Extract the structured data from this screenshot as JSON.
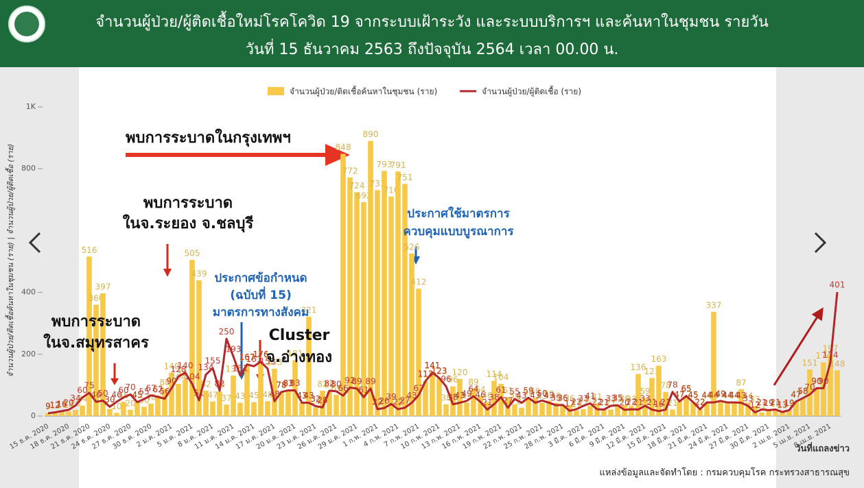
{
  "header": {
    "title_line1": "จำนวนผู้ป่วย/ผู้ติดเชื้อใหม่โรคโควิด 19 จากระบบเฝ้าระวัง และระบบบริการฯ และค้นหาในชุมชน รายวัน",
    "title_line2": "วันที่ 15 ธันวาคม 2563 ถึงปัจจุบัน 2564 เวลา 00.00 น."
  },
  "footer": {
    "source": "แหล่งข้อมูลและจัดทำโดย : กรมควบคุมโรค กระทรวงสาธารณสุข"
  },
  "chart_data": {
    "type": "bar",
    "x_label": "วันที่แถลงข่าว",
    "y_label": "จำนวนผู้ป่วย/ติดเชื้อค้นหาในชุมชน (ราย) | จำนวนผู้ป่วย/ผู้ติดเชื้อ (ราย)",
    "legend": "top",
    "ylim": [
      0,
      1000
    ],
    "yticks": [
      0,
      200,
      400,
      800,
      {
        "value": 1000,
        "label": "1K"
      }
    ],
    "grid": false,
    "categories": [
      "15 ธ.ค. 2020",
      null,
      null,
      "18 ธ.ค. 2020",
      null,
      null,
      "21 ธ.ค. 2020",
      null,
      null,
      "24 ธ.ค. 2020",
      null,
      null,
      "27 ธ.ค. 2020",
      null,
      null,
      "30 ธ.ค. 2020",
      null,
      null,
      "2 ม.ค. 2021",
      null,
      null,
      "5 ม.ค. 2021",
      null,
      null,
      "8 ม.ค. 2021",
      null,
      null,
      "11 ม.ค. 2021",
      null,
      null,
      "14 ม.ค. 2021",
      null,
      null,
      "17 ม.ค. 2021",
      null,
      null,
      "20 ม.ค. 2021",
      null,
      null,
      "23 ม.ค. 2021",
      null,
      null,
      "26 ม.ค. 2021",
      null,
      null,
      "29 ม.ค. 2021",
      null,
      null,
      "1 ก.พ. 2021",
      null,
      null,
      "4 ก.พ. 2021",
      null,
      null,
      "7 ก.พ. 2021",
      null,
      null,
      "10 ก.พ. 2021",
      null,
      null,
      "13 ก.พ. 2021",
      null,
      null,
      "16 ก.พ. 2021",
      null,
      null,
      "19 ก.พ. 2021",
      null,
      null,
      "22 ก.พ. 2021",
      null,
      null,
      "25 ก.พ. 2021",
      null,
      null,
      "28 ก.พ. 2021",
      null,
      null,
      "3 มี.ค. 2021",
      null,
      null,
      "6 มี.ค. 2021",
      null,
      null,
      "9 มี.ค. 2021",
      null,
      null,
      "12 มี.ค. 2021",
      null,
      null,
      "15 มี.ค. 2021",
      null,
      null,
      "18 มี.ค. 2021",
      null,
      null,
      "21 มี.ค. 2021",
      null,
      null,
      "24 มี.ค. 2021",
      null,
      null,
      "27 มี.ค. 2021",
      null,
      null,
      "30 มี.ค. 2021",
      null,
      null,
      "2 เม.ย. 2021",
      null,
      null,
      "5 เม.ย. 2021",
      null,
      null,
      "8 เม.ย. 2021",
      null
    ],
    "series": [
      {
        "name": "จำนวนผู้ป่วย/ติดเชื้อค้นหาในชุมชน (ราย)",
        "type": "bar",
        "color": "#f7c948",
        "values": [
          9,
          12,
          16,
          14,
          20,
          34,
          516,
          360,
          397,
          23,
          10,
          46,
          20,
          45,
          30,
          40,
          67,
          88,
          140,
          104,
          117,
          505,
          439,
          82,
          47,
          79,
          37,
          131,
          43,
          167,
          45,
          176,
          48,
          153,
          78,
          83,
          181,
          43,
          321,
          28,
          82,
          80,
          69,
          848,
          772,
          724,
          692,
          890,
          731,
          793,
          710,
          791,
          751,
          526,
          412,
          113,
          141,
          123,
          38,
          96,
          120,
          43,
          89,
          64,
          46,
          114,
          104,
          61,
          38,
          27,
          55,
          59,
          43,
          50,
          43,
          35,
          36,
          17,
          22,
          33,
          41,
          22,
          21,
          33,
          36,
          33,
          136,
          59,
          123,
          163,
          78,
          21,
          47,
          65,
          45,
          22,
          44,
          337,
          49,
          44,
          44,
          87,
          44,
          33,
          12,
          21,
          19,
          13,
          19,
          47,
          58,
          151,
          90,
          174,
          197,
          148
        ]
      },
      {
        "name": "จำนวนผู้ป่วย/ผู้ติดเชื้อ (ราย)",
        "type": "line",
        "color": "#b3262c",
        "values": [
          9,
          12,
          16,
          20,
          34,
          60,
          75,
          46,
          50,
          30,
          46,
          60,
          70,
          45,
          55,
          67,
          62,
          56,
          90,
          128,
          140,
          104,
          51,
          134,
          155,
          82,
          250,
          193,
          131,
          167,
          161,
          176,
          153,
          48,
          78,
          83,
          83,
          43,
          43,
          32,
          28,
          82,
          80,
          66,
          92,
          89,
          61,
          89,
          22,
          26,
          39,
          22,
          27,
          43,
          67,
          113,
          141,
          123,
          96,
          38,
          43,
          49,
          64,
          46,
          21,
          38,
          61,
          27,
          55,
          43,
          59,
          43,
          50,
          43,
          35,
          36,
          17,
          22,
          33,
          41,
          22,
          21,
          33,
          35,
          20,
          22,
          21,
          33,
          21,
          16,
          21,
          78,
          47,
          65,
          45,
          22,
          44,
          44,
          49,
          44,
          44,
          43,
          33,
          12,
          21,
          19,
          21,
          13,
          19,
          47,
          58,
          70,
          90,
          90,
          174,
          401
        ]
      }
    ],
    "annotations": [
      {
        "text": "พบการระบาดในกรุงเทพฯ",
        "color": "#111111"
      },
      {
        "text": "พบการระบาด",
        "color": "#111111"
      },
      {
        "text": "ในจ.ระยอง จ.ชลบุรี",
        "color": "#111111"
      },
      {
        "text": "พบการระบาด",
        "color": "#111111"
      },
      {
        "text": "ในจ.สมุทรสาคร",
        "color": "#111111"
      },
      {
        "text": "ประกาศข้อกำหนด",
        "color": "#1f63b5"
      },
      {
        "text": "(ฉบับที่ 15)",
        "color": "#1f63b5"
      },
      {
        "text": "มาตรการทางสังคม",
        "color": "#1f63b5"
      },
      {
        "text": "Cluster",
        "color": "#111111"
      },
      {
        "text": "จ.อ่างทอง",
        "color": "#111111"
      },
      {
        "text": "ประกาศใช้มาตรการ",
        "color": "#1f63b5"
      },
      {
        "text": "ควบคุมแบบบูรณาการ",
        "color": "#1f63b5"
      }
    ]
  }
}
